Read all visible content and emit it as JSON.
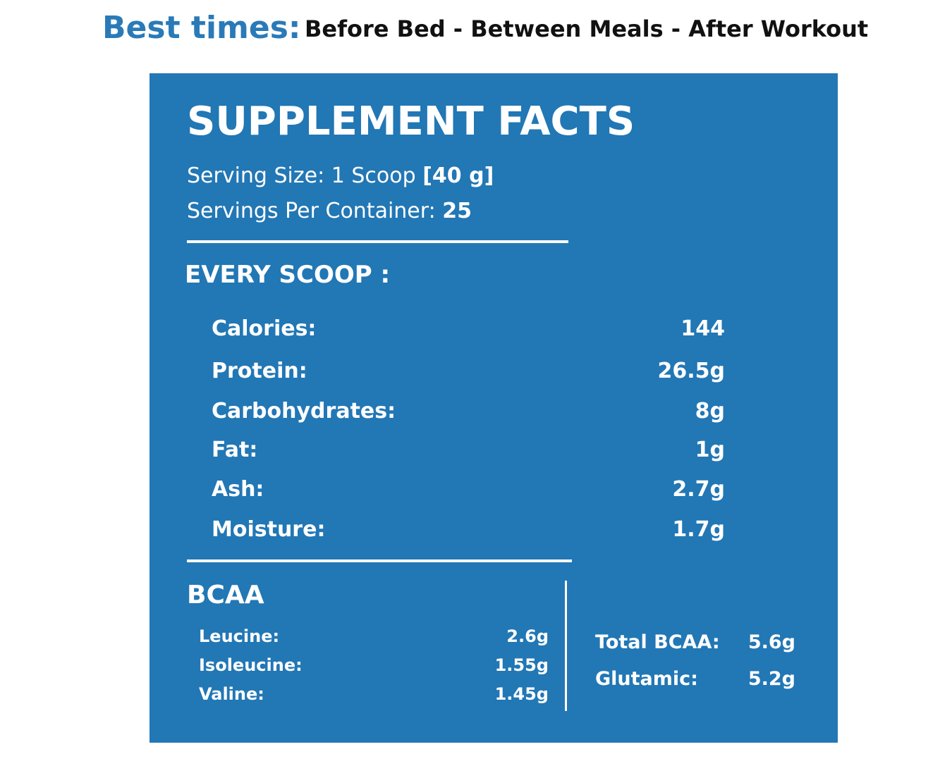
{
  "header": {
    "label": "Best times:",
    "times": "Before Bed - Between Meals - After Workout"
  },
  "panel": {
    "title": "SUPPLEMENT FACTS",
    "serving_size": {
      "label": "Serving Size: 1 Scoop",
      "value": "[40 g]"
    },
    "servings": {
      "label": "Servings Per Container:",
      "value": "25"
    },
    "section": "EVERY SCOOP :",
    "rows": [
      [
        "Calories:",
        "144"
      ],
      [
        "Protein:",
        "26.5g"
      ],
      [
        "Carbohydrates:",
        "8g"
      ],
      [
        "Fat:",
        "1g"
      ],
      [
        "Ash:",
        "2.7g"
      ],
      [
        "Moisture:",
        "1.7g"
      ]
    ],
    "bcaa": {
      "title": "BCAA",
      "rows": [
        [
          "Leucine:",
          "2.6g"
        ],
        [
          "Isoleucine:",
          "1.55g"
        ],
        [
          "Valine:",
          "1.45g"
        ]
      ],
      "totals": [
        [
          "Total BCAA:",
          "5.6g"
        ],
        [
          "Glutamic:",
          "5.2g"
        ]
      ]
    }
  }
}
